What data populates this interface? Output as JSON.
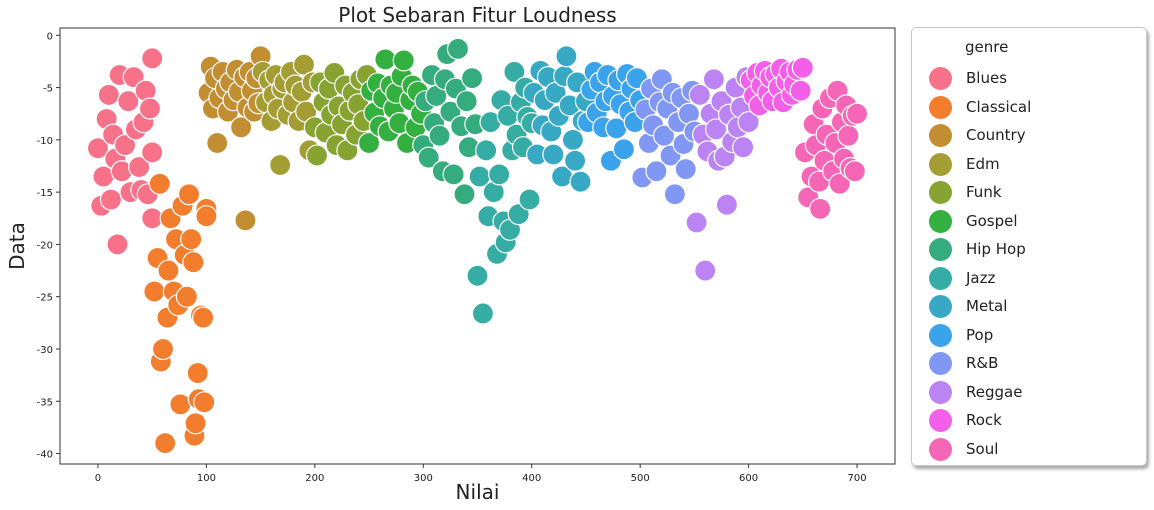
{
  "chart_data": {
    "type": "scatter",
    "title": "Plot Sebaran Fitur Loudness",
    "xlabel": "Nilai",
    "ylabel": "Data",
    "xlim": [
      -35,
      735
    ],
    "ylim": [
      -41,
      0.7
    ],
    "xticks": [
      0,
      100,
      200,
      300,
      400,
      500,
      600,
      700
    ],
    "yticks": [
      0,
      -5,
      -10,
      -15,
      -20,
      -25,
      -30,
      -35,
      -40
    ],
    "grid": false,
    "legend_title": "genre",
    "legend_position": "outside-right",
    "series": [
      {
        "name": "Blues",
        "color": "#f77189",
        "points": [
          [
            0,
            -10.8
          ],
          [
            3,
            -16.3
          ],
          [
            5,
            -13.5
          ],
          [
            8,
            -8
          ],
          [
            10,
            -5.7
          ],
          [
            12,
            -15.7
          ],
          [
            14,
            -9.5
          ],
          [
            16,
            -11.8
          ],
          [
            18,
            -20
          ],
          [
            20,
            -3.8
          ],
          [
            22,
            -13
          ],
          [
            25,
            -10.5
          ],
          [
            28,
            -6.3
          ],
          [
            30,
            -15
          ],
          [
            33,
            -4
          ],
          [
            35,
            -9
          ],
          [
            38,
            -12.6
          ],
          [
            40,
            -14.8
          ],
          [
            42,
            -8.3
          ],
          [
            44,
            -5.3
          ],
          [
            46,
            -15.2
          ],
          [
            48,
            -7
          ],
          [
            50,
            -11.2
          ],
          [
            50,
            -17.5
          ],
          [
            50,
            -2.2
          ]
        ]
      },
      {
        "name": "Classical",
        "color": "#f27d2d",
        "points": [
          [
            52,
            -24.5
          ],
          [
            55,
            -21.3
          ],
          [
            57,
            -14.2
          ],
          [
            58,
            -31.2
          ],
          [
            60,
            -30
          ],
          [
            62,
            -39
          ],
          [
            64,
            -27
          ],
          [
            65,
            -22.5
          ],
          [
            67,
            -17.5
          ],
          [
            70,
            -24.5
          ],
          [
            72,
            -19.5
          ],
          [
            74,
            -25.8
          ],
          [
            76,
            -35.3
          ],
          [
            78,
            -16.3
          ],
          [
            80,
            -21
          ],
          [
            82,
            -25
          ],
          [
            84,
            -15.2
          ],
          [
            86,
            -19.5
          ],
          [
            88,
            -21.7
          ],
          [
            89,
            -38.3
          ],
          [
            90,
            -37.1
          ],
          [
            92,
            -32.3
          ],
          [
            93,
            -34.8
          ],
          [
            95,
            -26.8
          ],
          [
            97,
            -27
          ],
          [
            98,
            -35.1
          ],
          [
            100,
            -16.6
          ],
          [
            100,
            -17.3
          ]
        ]
      },
      {
        "name": "Country",
        "color": "#c38e32",
        "points": [
          [
            102,
            -5.5
          ],
          [
            104,
            -3
          ],
          [
            106,
            -7
          ],
          [
            108,
            -4.1
          ],
          [
            110,
            -10.3
          ],
          [
            112,
            -6
          ],
          [
            115,
            -3.5
          ],
          [
            118,
            -5.1
          ],
          [
            120,
            -7.3
          ],
          [
            122,
            -4.5
          ],
          [
            125,
            -6.2
          ],
          [
            128,
            -3.3
          ],
          [
            130,
            -5.4
          ],
          [
            132,
            -8.8
          ],
          [
            135,
            -4
          ],
          [
            136,
            -17.7
          ],
          [
            138,
            -6.9
          ],
          [
            140,
            -3.5
          ],
          [
            142,
            -5.3
          ],
          [
            144,
            -7.3
          ],
          [
            146,
            -4.1
          ],
          [
            148,
            -6.5
          ],
          [
            150,
            -2
          ]
        ]
      },
      {
        "name": "Edm",
        "color": "#a39d33",
        "points": [
          [
            152,
            -3.5
          ],
          [
            155,
            -6.4
          ],
          [
            158,
            -4.3
          ],
          [
            160,
            -8.2
          ],
          [
            162,
            -5.7
          ],
          [
            164,
            -3.8
          ],
          [
            166,
            -7
          ],
          [
            168,
            -12.4
          ],
          [
            170,
            -5.1
          ],
          [
            172,
            -4.5
          ],
          [
            175,
            -7.6
          ],
          [
            178,
            -3.5
          ],
          [
            180,
            -6.4
          ],
          [
            182,
            -4.8
          ],
          [
            185,
            -8.2
          ],
          [
            188,
            -5.4
          ],
          [
            190,
            -2.8
          ],
          [
            192,
            -7.3
          ],
          [
            195,
            -11
          ],
          [
            198,
            -4.5
          ]
        ]
      },
      {
        "name": "Funk",
        "color": "#87a432",
        "points": [
          [
            200,
            -8.8
          ],
          [
            202,
            -11.5
          ],
          [
            205,
            -4.5
          ],
          [
            208,
            -6.4
          ],
          [
            210,
            -9.3
          ],
          [
            213,
            -5.1
          ],
          [
            215,
            -7.6
          ],
          [
            218,
            -3.6
          ],
          [
            220,
            -10.5
          ],
          [
            222,
            -6.8
          ],
          [
            225,
            -8.5
          ],
          [
            228,
            -4.8
          ],
          [
            230,
            -11
          ],
          [
            232,
            -7.2
          ],
          [
            235,
            -5.5
          ],
          [
            238,
            -9.5
          ],
          [
            240,
            -6.6
          ],
          [
            242,
            -4.2
          ],
          [
            245,
            -8.2
          ],
          [
            248,
            -3.8
          ]
        ]
      },
      {
        "name": "Gospel",
        "color": "#33b040",
        "points": [
          [
            250,
            -10.3
          ],
          [
            252,
            -5.3
          ],
          [
            255,
            -7.4
          ],
          [
            258,
            -4.6
          ],
          [
            260,
            -8.7
          ],
          [
            263,
            -6
          ],
          [
            265,
            -2.3
          ],
          [
            268,
            -9.2
          ],
          [
            270,
            -4.8
          ],
          [
            273,
            -7
          ],
          [
            275,
            -5.5
          ],
          [
            278,
            -8.4
          ],
          [
            280,
            -3.9
          ],
          [
            282,
            -2.4
          ],
          [
            285,
            -10.3
          ],
          [
            288,
            -6.2
          ],
          [
            290,
            -4.8
          ],
          [
            293,
            -8.8
          ],
          [
            295,
            -5.4
          ],
          [
            298,
            -7.5
          ]
        ]
      },
      {
        "name": "Hip Hop",
        "color": "#35ac7d",
        "points": [
          [
            300,
            -10.5
          ],
          [
            302,
            -6.3
          ],
          [
            305,
            -11.7
          ],
          [
            308,
            -3.8
          ],
          [
            310,
            -8.4
          ],
          [
            312,
            -5.8
          ],
          [
            315,
            -9.6
          ],
          [
            318,
            -13
          ],
          [
            320,
            -4.2
          ],
          [
            322,
            -1.8
          ],
          [
            325,
            -7.3
          ],
          [
            328,
            -13.3
          ],
          [
            330,
            -5.1
          ],
          [
            332,
            -1.3
          ],
          [
            335,
            -8.7
          ],
          [
            338,
            -15.2
          ],
          [
            340,
            -6.3
          ],
          [
            342,
            -10.7
          ],
          [
            345,
            -4.1
          ],
          [
            348,
            -8.5
          ]
        ]
      },
      {
        "name": "Jazz",
        "color": "#36ada4",
        "points": [
          [
            350,
            -23
          ],
          [
            352,
            -13.5
          ],
          [
            355,
            -26.6
          ],
          [
            358,
            -11
          ],
          [
            360,
            -17.3
          ],
          [
            362,
            -8.3
          ],
          [
            365,
            -15
          ],
          [
            368,
            -20.9
          ],
          [
            370,
            -13.3
          ],
          [
            372,
            -6.2
          ],
          [
            374,
            -17.8
          ],
          [
            376,
            -19.8
          ],
          [
            378,
            -7.7
          ],
          [
            380,
            -18.6
          ],
          [
            382,
            -11
          ],
          [
            384,
            -3.5
          ],
          [
            386,
            -9.5
          ],
          [
            388,
            -17.1
          ],
          [
            390,
            -6.4
          ],
          [
            392,
            -10.7
          ],
          [
            394,
            -5
          ],
          [
            396,
            -7.8
          ],
          [
            398,
            -15.7
          ],
          [
            400,
            -8.4
          ]
        ]
      },
      {
        "name": "Metal",
        "color": "#38a9c5",
        "points": [
          [
            402,
            -5.5
          ],
          [
            405,
            -11.4
          ],
          [
            408,
            -3.4
          ],
          [
            410,
            -8.6
          ],
          [
            412,
            -6.2
          ],
          [
            415,
            -4
          ],
          [
            418,
            -9.2
          ],
          [
            420,
            -11.4
          ],
          [
            422,
            -5.5
          ],
          [
            425,
            -7.7
          ],
          [
            428,
            -13.5
          ],
          [
            430,
            -3.9
          ],
          [
            432,
            -2
          ],
          [
            435,
            -6.7
          ],
          [
            438,
            -10
          ],
          [
            440,
            -12
          ],
          [
            442,
            -4.5
          ],
          [
            445,
            -14
          ],
          [
            447,
            -8.2
          ],
          [
            450,
            -6.3
          ]
        ]
      },
      {
        "name": "Pop",
        "color": "#3ba3ec",
        "points": [
          [
            452,
            -8.3
          ],
          [
            455,
            -5.2
          ],
          [
            458,
            -3.5
          ],
          [
            460,
            -7.4
          ],
          [
            463,
            -4.5
          ],
          [
            466,
            -8.8
          ],
          [
            468,
            -6.3
          ],
          [
            470,
            -3.8
          ],
          [
            473,
            -12
          ],
          [
            475,
            -5.8
          ],
          [
            478,
            -8.9
          ],
          [
            480,
            -4.3
          ],
          [
            482,
            -6.6
          ],
          [
            485,
            -10.9
          ],
          [
            488,
            -3.7
          ],
          [
            490,
            -7.3
          ],
          [
            492,
            -5.1
          ],
          [
            495,
            -8.3
          ],
          [
            497,
            -4.1
          ],
          [
            500,
            -6.2
          ]
        ]
      },
      {
        "name": "R&B",
        "color": "#8197f4",
        "points": [
          [
            502,
            -13.6
          ],
          [
            505,
            -7.1
          ],
          [
            508,
            -10.3
          ],
          [
            510,
            -5.1
          ],
          [
            512,
            -8.6
          ],
          [
            515,
            -13
          ],
          [
            518,
            -6.4
          ],
          [
            520,
            -4.2
          ],
          [
            522,
            -9.6
          ],
          [
            525,
            -7
          ],
          [
            528,
            -11.5
          ],
          [
            530,
            -5.5
          ],
          [
            532,
            -15.2
          ],
          [
            535,
            -8.3
          ],
          [
            538,
            -6
          ],
          [
            540,
            -10.4
          ],
          [
            542,
            -12.8
          ],
          [
            545,
            -7.5
          ],
          [
            548,
            -5.3
          ],
          [
            550,
            -9.2
          ]
        ]
      },
      {
        "name": "Reggae",
        "color": "#bb83f4",
        "points": [
          [
            552,
            -17.9
          ],
          [
            555,
            -5.7
          ],
          [
            558,
            -9.5
          ],
          [
            560,
            -22.5
          ],
          [
            562,
            -11.1
          ],
          [
            565,
            -7.5
          ],
          [
            568,
            -4.2
          ],
          [
            570,
            -9
          ],
          [
            572,
            -12
          ],
          [
            575,
            -6.3
          ],
          [
            578,
            -11.6
          ],
          [
            580,
            -16.2
          ],
          [
            582,
            -7.6
          ],
          [
            585,
            -10.2
          ],
          [
            588,
            -5
          ],
          [
            590,
            -8.8
          ],
          [
            593,
            -6.9
          ],
          [
            595,
            -10.7
          ],
          [
            598,
            -4
          ],
          [
            600,
            -8.3
          ]
        ]
      },
      {
        "name": "Rock",
        "color": "#f45fe9",
        "points": [
          [
            602,
            -4.3
          ],
          [
            605,
            -5.8
          ],
          [
            608,
            -3.6
          ],
          [
            610,
            -6.7
          ],
          [
            612,
            -4.8
          ],
          [
            615,
            -3.4
          ],
          [
            618,
            -5.5
          ],
          [
            620,
            -4
          ],
          [
            622,
            -6.3
          ],
          [
            625,
            -3.7
          ],
          [
            628,
            -5
          ],
          [
            630,
            -3.2
          ],
          [
            632,
            -6.4
          ],
          [
            635,
            -4.4
          ],
          [
            638,
            -3.5
          ],
          [
            640,
            -5.7
          ],
          [
            642,
            -4.7
          ],
          [
            645,
            -3.3
          ],
          [
            648,
            -5.3
          ],
          [
            650,
            -3.1
          ]
        ]
      },
      {
        "name": "Soul",
        "color": "#f666b6",
        "points": [
          [
            652,
            -11.2
          ],
          [
            655,
            -15.5
          ],
          [
            658,
            -13.5
          ],
          [
            660,
            -8.5
          ],
          [
            662,
            -10.5
          ],
          [
            665,
            -14
          ],
          [
            666,
            -16.6
          ],
          [
            668,
            -7
          ],
          [
            670,
            -12
          ],
          [
            672,
            -9.5
          ],
          [
            675,
            -6
          ],
          [
            678,
            -13
          ],
          [
            680,
            -10.3
          ],
          [
            682,
            -5.3
          ],
          [
            684,
            -14.2
          ],
          [
            686,
            -8.3
          ],
          [
            688,
            -11.8
          ],
          [
            690,
            -6.7
          ],
          [
            692,
            -9.6
          ],
          [
            694,
            -12.7
          ],
          [
            696,
            -7.7
          ],
          [
            698,
            -13
          ],
          [
            700,
            -7.5
          ]
        ]
      }
    ]
  }
}
